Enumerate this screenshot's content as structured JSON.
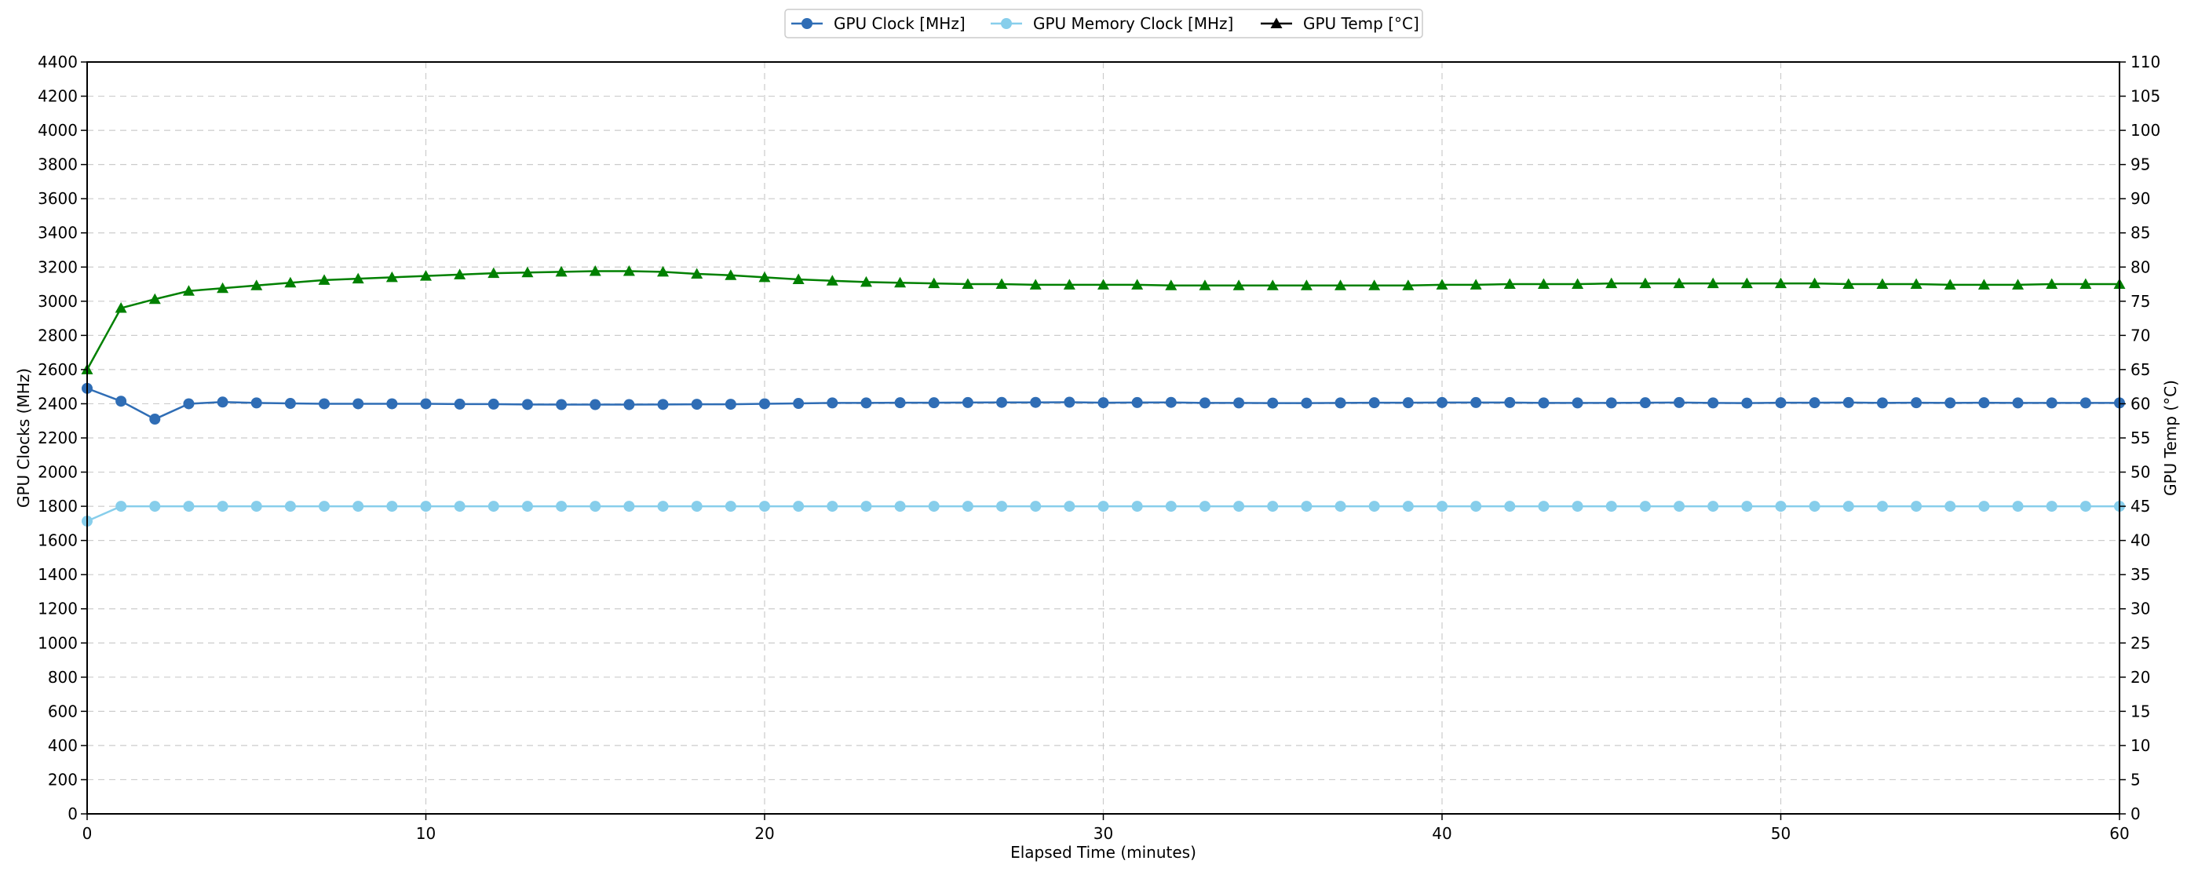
{
  "chart_data": {
    "type": "line",
    "xlabel": "Elapsed Time (minutes)",
    "ylabel_left": "GPU Clocks (MHz)",
    "ylabel_right": "GPU Temp (°C)",
    "xlim": [
      0,
      60
    ],
    "ylim_left": [
      0,
      4400
    ],
    "ylim_right": [
      0,
      110
    ],
    "x_ticks": [
      0,
      10,
      20,
      30,
      40,
      50,
      60
    ],
    "y_ticks_left": [
      0,
      200,
      400,
      600,
      800,
      1000,
      1200,
      1400,
      1600,
      1800,
      2000,
      2200,
      2400,
      2600,
      2800,
      3000,
      3200,
      3400,
      3600,
      3800,
      4000,
      4200,
      4400
    ],
    "y_ticks_right": [
      0,
      5,
      10,
      15,
      20,
      25,
      30,
      35,
      40,
      45,
      50,
      55,
      60,
      65,
      70,
      75,
      80,
      85,
      90,
      95,
      100,
      105,
      110
    ],
    "grid": true,
    "legend_position": "top-center",
    "x": [
      0,
      1,
      2,
      3,
      4,
      5,
      6,
      7,
      8,
      9,
      10,
      11,
      12,
      13,
      14,
      15,
      16,
      17,
      18,
      19,
      20,
      21,
      22,
      23,
      24,
      25,
      26,
      27,
      28,
      29,
      30,
      31,
      32,
      33,
      34,
      35,
      36,
      37,
      38,
      39,
      40,
      41,
      42,
      43,
      44,
      45,
      46,
      47,
      48,
      49,
      50,
      51,
      52,
      53,
      54,
      55,
      56,
      57,
      58,
      59,
      60
    ],
    "series": [
      {
        "name": "GPU Clock [MHz]",
        "axis": "left",
        "color": "#2f6db5",
        "marker": "circle",
        "values": [
          2490,
          2415,
          2310,
          2400,
          2410,
          2405,
          2402,
          2400,
          2400,
          2400,
          2400,
          2398,
          2398,
          2396,
          2395,
          2395,
          2395,
          2396,
          2397,
          2397,
          2400,
          2402,
          2405,
          2405,
          2406,
          2406,
          2407,
          2408,
          2408,
          2409,
          2406,
          2407,
          2408,
          2405,
          2405,
          2404,
          2404,
          2405,
          2406,
          2406,
          2407,
          2407,
          2407,
          2405,
          2405,
          2405,
          2406,
          2407,
          2405,
          2404,
          2406,
          2406,
          2407,
          2405,
          2406,
          2405,
          2406,
          2405,
          2405,
          2405,
          2405
        ]
      },
      {
        "name": "GPU Memory Clock [MHz]",
        "axis": "left",
        "color": "#87ceeb",
        "marker": "circle",
        "values": [
          1713,
          1800,
          1800,
          1800,
          1800,
          1800,
          1800,
          1800,
          1800,
          1800,
          1800,
          1800,
          1800,
          1800,
          1800,
          1800,
          1800,
          1800,
          1800,
          1800,
          1800,
          1800,
          1800,
          1800,
          1800,
          1800,
          1800,
          1800,
          1800,
          1800,
          1800,
          1800,
          1800,
          1800,
          1800,
          1800,
          1800,
          1800,
          1800,
          1800,
          1800,
          1800,
          1800,
          1800,
          1800,
          1800,
          1800,
          1800,
          1800,
          1800,
          1800,
          1800,
          1800,
          1800,
          1800,
          1800,
          1800,
          1800,
          1800,
          1800,
          1800
        ]
      },
      {
        "name": "GPU Temp [°C]",
        "axis": "right",
        "color": "#008000",
        "marker": "triangle",
        "legend_color": "#000000",
        "values": [
          65,
          74,
          75.3,
          76.5,
          76.9,
          77.3,
          77.7,
          78.1,
          78.3,
          78.5,
          78.7,
          78.9,
          79.1,
          79.2,
          79.3,
          79.4,
          79.4,
          79.3,
          79.0,
          78.8,
          78.5,
          78.2,
          78.0,
          77.8,
          77.7,
          77.6,
          77.5,
          77.5,
          77.4,
          77.4,
          77.4,
          77.4,
          77.3,
          77.3,
          77.3,
          77.3,
          77.3,
          77.3,
          77.3,
          77.3,
          77.4,
          77.4,
          77.5,
          77.5,
          77.5,
          77.6,
          77.6,
          77.6,
          77.6,
          77.6,
          77.6,
          77.6,
          77.5,
          77.5,
          77.5,
          77.4,
          77.4,
          77.4,
          77.5,
          77.5,
          77.5
        ]
      }
    ]
  }
}
